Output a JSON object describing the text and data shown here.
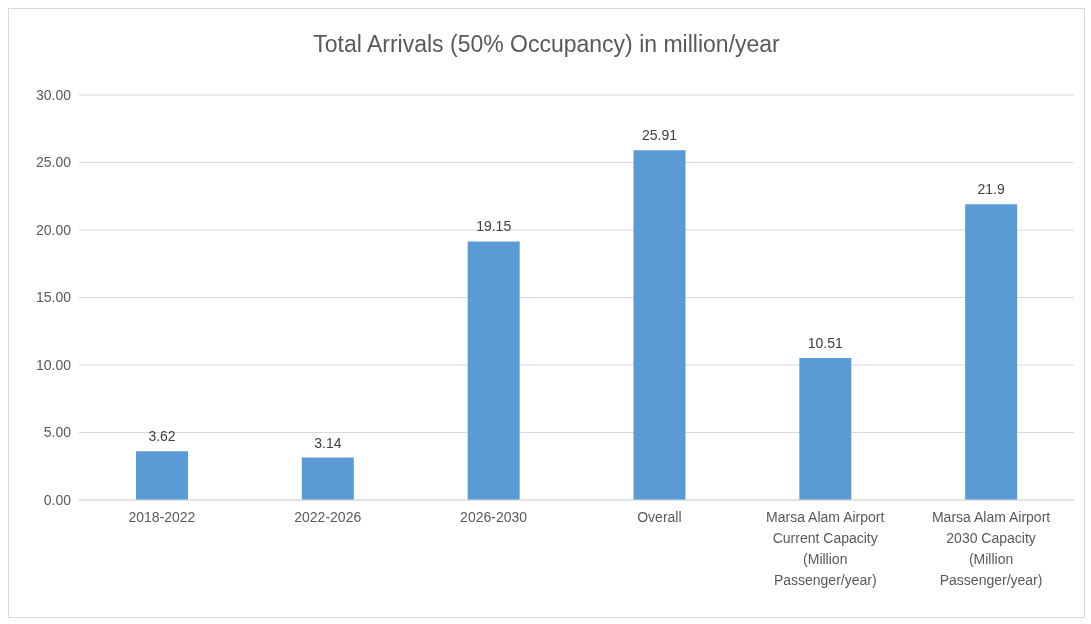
{
  "chart_data": {
    "type": "bar",
    "title": "Total Arrivals (50% Occupancy) in million/year",
    "categories": [
      "2018-2022",
      "2022-2026",
      "2026-2030",
      "Overall",
      "Marsa Alam Airport Current Capacity (Million Passenger/year)",
      "Marsa Alam Airport 2030 Capacity (Million Passenger/year)"
    ],
    "values": [
      3.62,
      3.14,
      19.15,
      25.91,
      10.51,
      21.9
    ],
    "color": "#5b9bd5",
    "ylim": [
      0,
      30
    ],
    "yticks": [
      {
        "value": 0,
        "label": "0.00"
      },
      {
        "value": 5,
        "label": "5.00"
      },
      {
        "value": 10,
        "label": "10.00"
      },
      {
        "value": 15,
        "label": "15.00"
      },
      {
        "value": 20,
        "label": "20.00"
      },
      {
        "value": 25,
        "label": "25.00"
      },
      {
        "value": 30,
        "label": "30.00"
      }
    ],
    "grid": "y",
    "data_labels": true,
    "legend": false
  }
}
